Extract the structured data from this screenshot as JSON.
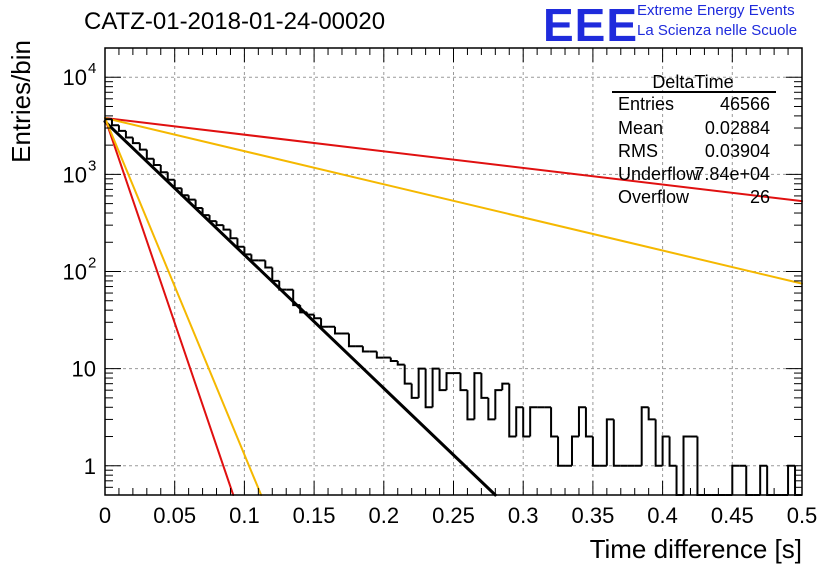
{
  "header": {
    "title": "CATZ-01-2018-01-24-00020",
    "logo_text": "EEE",
    "logo_line1": "Extreme Energy Events",
    "logo_line2": "La Scienza nelle Scuole"
  },
  "stats": {
    "name": "DeltaTime",
    "rows": [
      {
        "label": "Entries",
        "value": "46566"
      },
      {
        "label": "Mean",
        "value": "0.02884"
      },
      {
        "label": "RMS",
        "value": "0.03904"
      },
      {
        "label": "Underflow",
        "value": "7.84e+04"
      },
      {
        "label": "Overflow",
        "value": "26"
      }
    ]
  },
  "colors": {
    "histogram": "#000000",
    "fit_black": "#000000",
    "fit_red": "#e01010",
    "fit_orange": "#f5b800",
    "grid": "#9a9a9a"
  },
  "chart_data": {
    "type": "histogram",
    "title": "CATZ-01-2018-01-24-00020",
    "xlabel": "Time difference [s]",
    "ylabel": "Entries/bin",
    "xlim": [
      0,
      0.5
    ],
    "ylim": [
      0.5,
      20000
    ],
    "yscale": "log",
    "grid": true,
    "bin_width": 0.005,
    "x_ticks": [
      "0",
      "0.05",
      "0.1",
      "0.15",
      "0.2",
      "0.25",
      "0.3",
      "0.35",
      "0.4",
      "0.45",
      "0.5"
    ],
    "y_ticks": [
      {
        "value": 1,
        "label": "1"
      },
      {
        "value": 10,
        "label": "10"
      },
      {
        "value": 100,
        "label": "10",
        "exp": "2"
      },
      {
        "value": 1000,
        "label": "10",
        "exp": "3"
      },
      {
        "value": 10000,
        "label": "10",
        "exp": "4"
      }
    ],
    "bin_contents": [
      3700,
      3200,
      2800,
      2400,
      2100,
      1800,
      1450,
      1250,
      1050,
      880,
      720,
      610,
      550,
      450,
      380,
      330,
      300,
      270,
      220,
      180,
      150,
      130,
      130,
      110,
      80,
      65,
      65,
      45,
      38,
      36,
      33,
      27,
      27,
      23,
      23,
      17,
      17,
      15,
      15,
      13,
      13,
      12,
      11,
      7,
      5,
      10,
      4,
      10,
      6,
      9,
      9,
      6,
      3,
      9,
      5,
      3,
      6,
      7,
      2,
      4,
      2,
      4,
      4,
      4,
      2,
      1,
      1,
      2,
      4,
      2,
      1,
      1,
      3,
      1,
      1,
      1,
      1,
      4,
      3,
      1,
      2,
      1,
      0,
      2,
      2,
      0,
      0,
      0,
      0,
      0,
      1,
      1,
      0,
      0,
      1,
      0,
      0,
      0,
      1,
      0
    ],
    "series": [
      {
        "x": [
          0,
          0.28
        ],
        "y": [
          3500,
          0.5
        ]
      },
      {
        "x": [
          0,
          0.5
        ],
        "y": [
          3800,
          530
        ]
      },
      {
        "x": [
          0,
          0.5
        ],
        "y": [
          3800,
          75
        ]
      },
      {
        "x": [
          0,
          0.092
        ],
        "y": [
          3800,
          0.5
        ]
      },
      {
        "x": [
          0,
          0.112
        ],
        "y": [
          3800,
          0.5
        ]
      }
    ]
  }
}
